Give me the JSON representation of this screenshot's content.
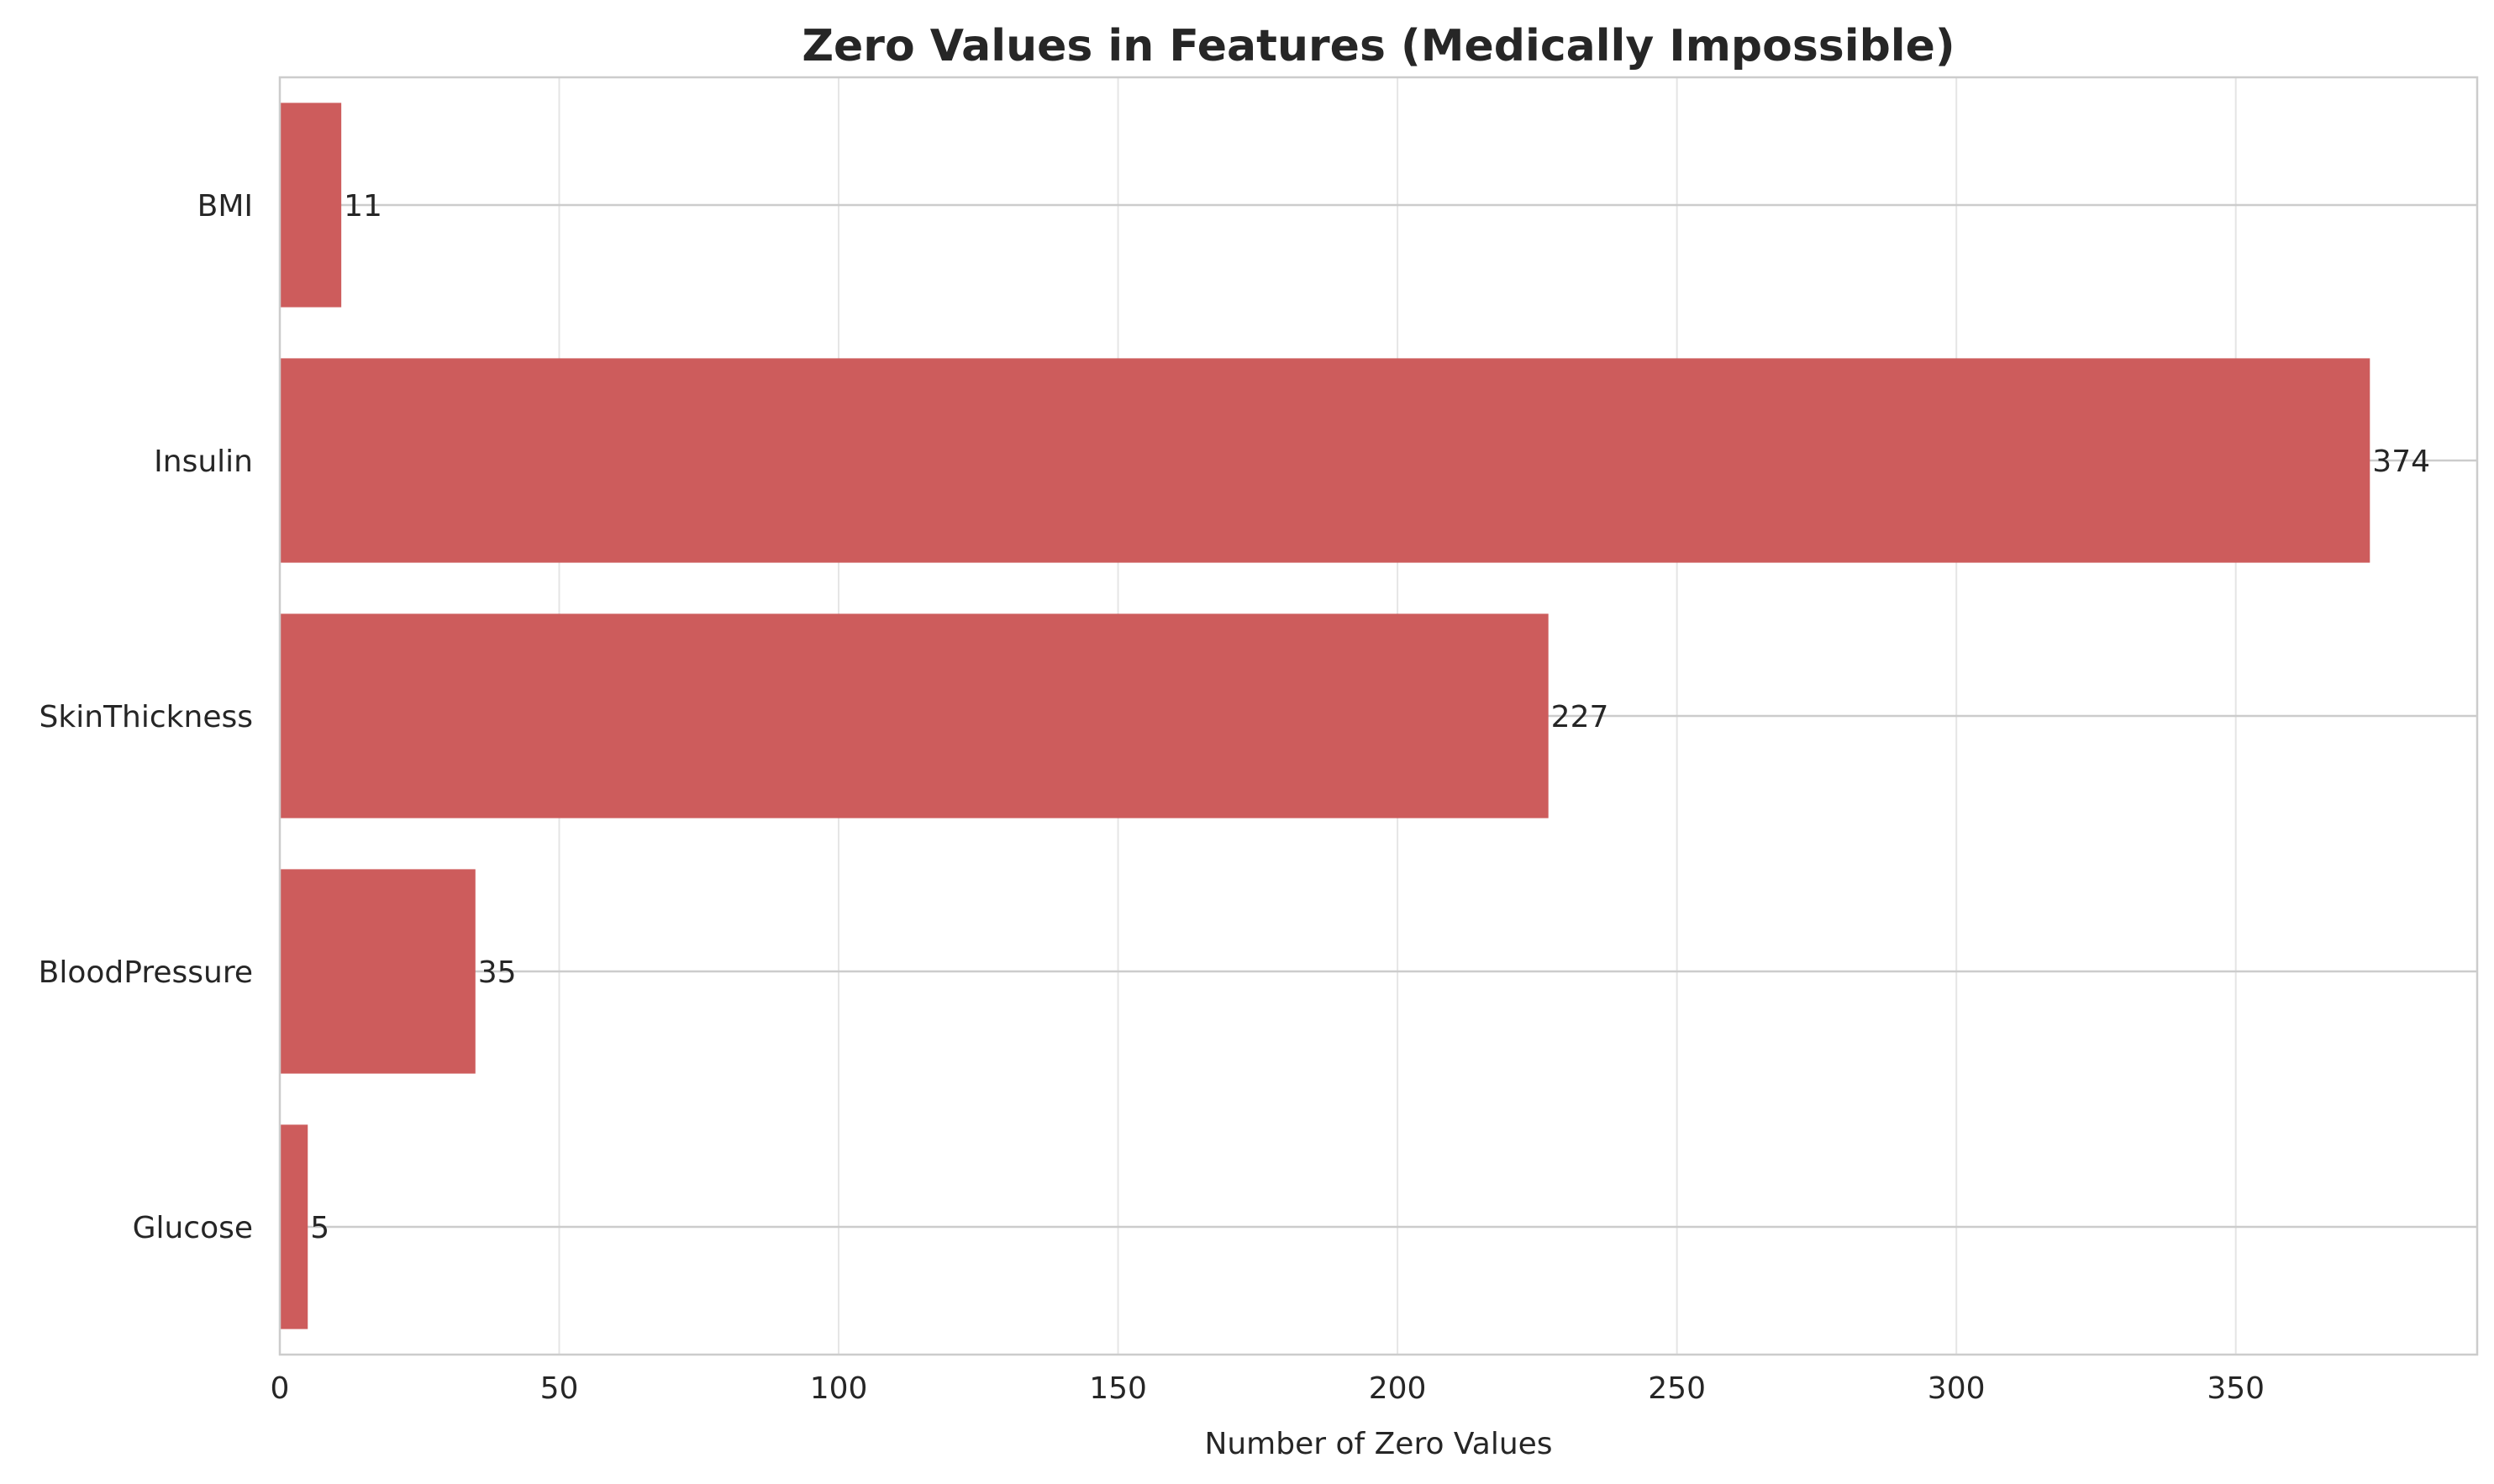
{
  "chart_data": {
    "type": "bar",
    "orientation": "horizontal",
    "title": "Zero Values in Features (Medically Impossible)",
    "xlabel": "Number of Zero Values",
    "ylabel": "",
    "categories": [
      "BMI",
      "Insulin",
      "SkinThickness",
      "BloodPressure",
      "Glucose"
    ],
    "values": [
      11,
      374,
      227,
      35,
      5
    ],
    "xlim": [
      0,
      393.2
    ],
    "xticks": [
      0,
      50,
      100,
      150,
      200,
      250,
      300,
      350
    ],
    "grid": true,
    "legend": "none",
    "bar_color": "#cd5c5c"
  }
}
